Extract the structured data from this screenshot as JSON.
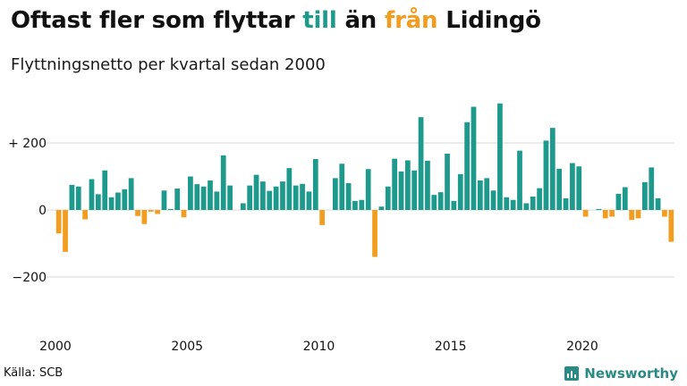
{
  "header": {
    "title_parts": [
      "Oftast fler som flyttar ",
      "till",
      " än ",
      "från",
      " Lidingö"
    ],
    "subtitle": "Flyttningsnetto per kvartal sedan 2000"
  },
  "footer": {
    "source": "Källa: SCB",
    "brand": "Newsworthy"
  },
  "colors": {
    "positive": "#1e9a8d",
    "negative": "#f29d1f",
    "grid": "#d9d9d9",
    "brand": "#2a8b84"
  },
  "icons": {
    "brand": "bar-chart-logo-icon"
  },
  "chart_data": {
    "type": "bar",
    "title": "Oftast fler som flyttar till än från Lidingö",
    "subtitle": "Flyttningsnetto per kvartal sedan 2000",
    "x_start": "2000 Q1",
    "x_ticks": [
      {
        "index": 0,
        "label": "2000"
      },
      {
        "index": 20,
        "label": "2005"
      },
      {
        "index": 40,
        "label": "2010"
      },
      {
        "index": 60,
        "label": "2015"
      },
      {
        "index": 80,
        "label": "2020"
      }
    ],
    "y_ticks": [
      {
        "value": 200,
        "label": "+ 200"
      },
      {
        "value": 0,
        "label": "0"
      },
      {
        "value": -200,
        "label": "−200"
      }
    ],
    "ylim": [
      -360,
      360
    ],
    "grid": true,
    "values": [
      -70,
      -125,
      75,
      70,
      -28,
      92,
      47,
      118,
      38,
      52,
      62,
      95,
      -18,
      -42,
      -5,
      -12,
      58,
      3,
      64,
      -22,
      100,
      77,
      70,
      88,
      55,
      163,
      73,
      0,
      20,
      73,
      105,
      85,
      57,
      70,
      85,
      125,
      73,
      78,
      55,
      152,
      -45,
      0,
      95,
      138,
      80,
      27,
      30,
      122,
      -140,
      10,
      70,
      153,
      115,
      148,
      118,
      277,
      147,
      45,
      53,
      168,
      27,
      107,
      262,
      308,
      88,
      95,
      58,
      318,
      38,
      30,
      177,
      20,
      40,
      65,
      207,
      245,
      123,
      35,
      140,
      130,
      -20,
      0,
      3,
      -25,
      -20,
      48,
      68,
      -30,
      -25,
      83,
      127,
      35,
      -20,
      -95
    ]
  }
}
